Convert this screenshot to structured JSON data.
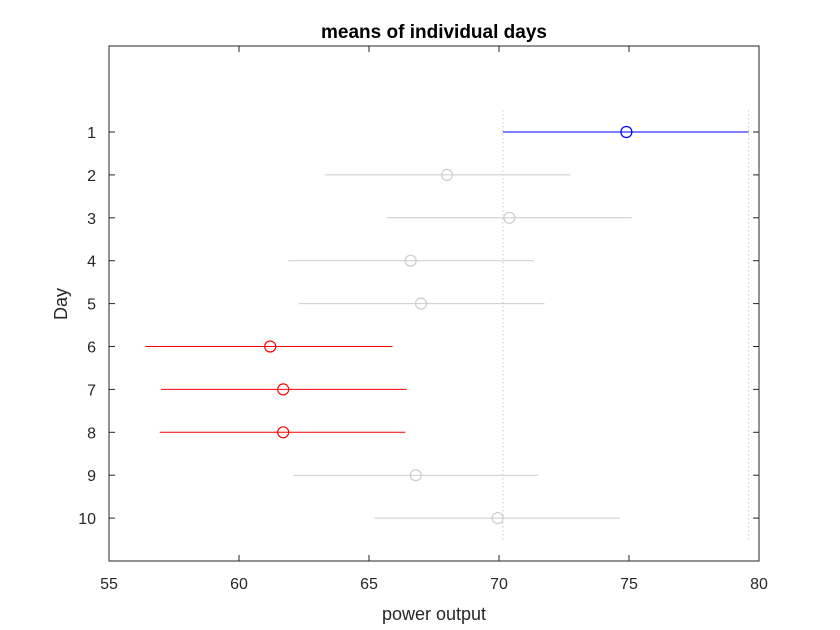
{
  "chart_data": {
    "type": "errorbar-dot",
    "title": "means of individual days",
    "xlabel": "power output",
    "ylabel": "Day",
    "xlim": [
      55,
      80
    ],
    "xticks": [
      "55",
      "60",
      "65",
      "70",
      "75",
      "80"
    ],
    "categories": [
      "1",
      "2",
      "3",
      "4",
      "5",
      "6",
      "7",
      "8",
      "9",
      "10"
    ],
    "means": [
      74.9,
      68.0,
      70.4,
      66.6,
      67.0,
      61.2,
      61.7,
      61.7,
      66.8,
      69.95
    ],
    "lower": [
      70.15,
      63.3,
      65.7,
      61.9,
      62.3,
      56.4,
      57.0,
      56.95,
      62.1,
      65.2
    ],
    "upper": [
      79.6,
      72.75,
      75.1,
      71.35,
      71.75,
      65.9,
      66.45,
      66.4,
      71.5,
      74.65
    ],
    "groups": [
      "selected",
      "other",
      "other",
      "other",
      "other",
      "significant",
      "significant",
      "significant",
      "other",
      "other"
    ],
    "reference_lines": [
      70.15,
      79.6
    ],
    "colors": {
      "selected": "#0000ff",
      "significant": "#ff0000",
      "other": "#cccccc",
      "reference": "#c8c8c8"
    }
  }
}
